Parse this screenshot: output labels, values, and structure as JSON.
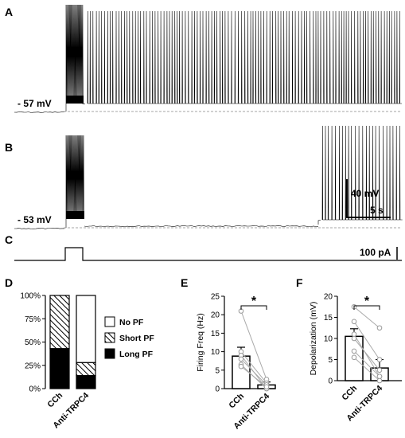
{
  "panels": {
    "A": "A",
    "B": "B",
    "C": "C",
    "D": "D",
    "E": "E",
    "F": "F"
  },
  "traces": {
    "A": {
      "baseline_label": "- 57 mV"
    },
    "B": {
      "baseline_label": "- 53 mV"
    },
    "scalebar": {
      "voltage": "40 mV",
      "time": "5 s"
    },
    "stim": {
      "label": "100 pA"
    }
  },
  "chart_data": [
    {
      "panel": "D",
      "type": "bar",
      "stacked": true,
      "categories": [
        "CCh",
        "Anti-TRPC4"
      ],
      "series": [
        {
          "name": "Long PF",
          "fill": "solid",
          "values": [
            43,
            14
          ]
        },
        {
          "name": "Short PF",
          "fill": "hatch",
          "values": [
            57,
            14
          ]
        },
        {
          "name": "No PF",
          "fill": "white",
          "values": [
            0,
            72
          ]
        }
      ],
      "yticks": [
        "0%",
        "25%",
        "50%",
        "75%",
        "100%"
      ],
      "ylim": [
        0,
        100
      ],
      "legend": "right"
    },
    {
      "panel": "E",
      "type": "bar",
      "ylabel": "Firing Freq (Hz)",
      "categories": [
        "CCh",
        "Anti-TRPC4"
      ],
      "values": [
        8.8,
        1.0
      ],
      "errors": [
        2.4,
        0.8
      ],
      "ylim": [
        0,
        25
      ],
      "yticks": [
        "0",
        "5",
        "10",
        "15",
        "20",
        "25"
      ],
      "paired": [
        [
          21,
          2.5
        ],
        [
          10,
          1.5
        ],
        [
          9,
          0
        ],
        [
          8,
          1
        ],
        [
          6.5,
          0
        ],
        [
          6,
          0.5
        ]
      ],
      "significance": "*"
    },
    {
      "panel": "F",
      "type": "bar",
      "ylabel": "Depolarization (mV)",
      "categories": [
        "CCh",
        "Anti-TRPC4"
      ],
      "values": [
        10.5,
        3.0
      ],
      "errors": [
        1.8,
        2.0
      ],
      "ylim": [
        0,
        20
      ],
      "yticks": [
        "0",
        "5",
        "10",
        "15",
        "20"
      ],
      "paired": [
        [
          17.5,
          12.5
        ],
        [
          14,
          5
        ],
        [
          11,
          1
        ],
        [
          10,
          2.5
        ],
        [
          7,
          1
        ],
        [
          5.5,
          0
        ]
      ],
      "significance": "*"
    }
  ]
}
